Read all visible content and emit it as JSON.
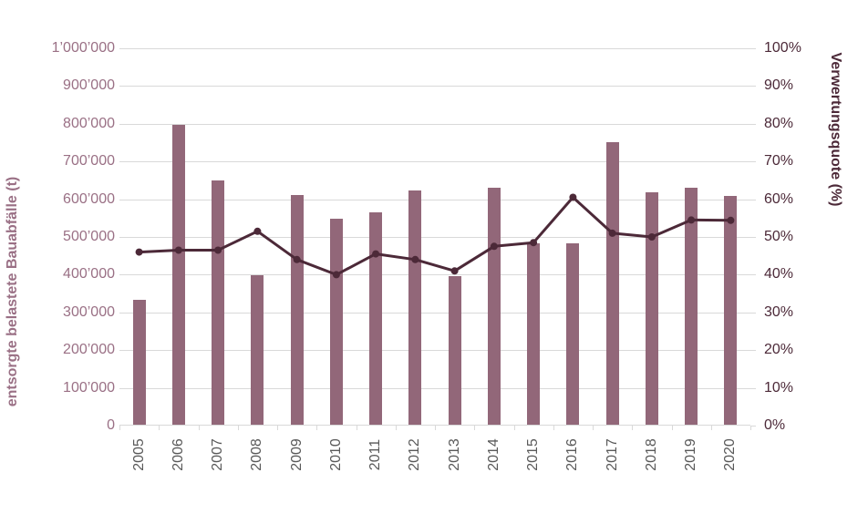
{
  "chart_data": {
    "type": "combo-bar-line",
    "title": "",
    "categories": [
      "2005",
      "2006",
      "2007",
      "2008",
      "2009",
      "2010",
      "2011",
      "2012",
      "2013",
      "2014",
      "2015",
      "2016",
      "2017",
      "2018",
      "2019",
      "2020"
    ],
    "series": [
      {
        "name": "entsorgte belastete Bauabfälle (t)",
        "type": "bar",
        "axis": "left",
        "values": [
          330000,
          795000,
          648000,
          396000,
          609000,
          545000,
          563000,
          620000,
          394000,
          629000,
          480000,
          480000,
          750000,
          617000,
          627000,
          607000
        ]
      },
      {
        "name": "Verwertungsquote (%)",
        "type": "line",
        "axis": "right",
        "values": [
          46,
          46.5,
          46.5,
          51.5,
          44,
          40,
          45.5,
          44,
          41,
          47.5,
          48.5,
          60.5,
          51,
          50,
          54.5,
          54.4
        ]
      }
    ],
    "left_axis": {
      "title": "entsorgte belastete Bauabfälle (t)",
      "min": 0,
      "max": 1000000,
      "step": 100000,
      "tick_labels": [
        "0",
        "100’000",
        "200’000",
        "300’000",
        "400’000",
        "500’000",
        "600’000",
        "700’000",
        "800’000",
        "900’000",
        "1’000’000"
      ]
    },
    "right_axis": {
      "title": "Verwertungsquote (%)",
      "min": 0,
      "max": 100,
      "step": 10,
      "tick_labels": [
        "0%",
        "10%",
        "20%",
        "30%",
        "40%",
        "50%",
        "60%",
        "70%",
        "80%",
        "90%",
        "100%"
      ]
    },
    "grid": true,
    "legend": "none"
  },
  "colors": {
    "bar": "#926779",
    "line": "#4c2938",
    "marker": "#4c2938",
    "left_axis_text": "#9a7085",
    "right_axis_text": "#4c2938",
    "x_axis_text": "#595959",
    "gridline": "#d9d9d9",
    "background": "#ffffff"
  }
}
